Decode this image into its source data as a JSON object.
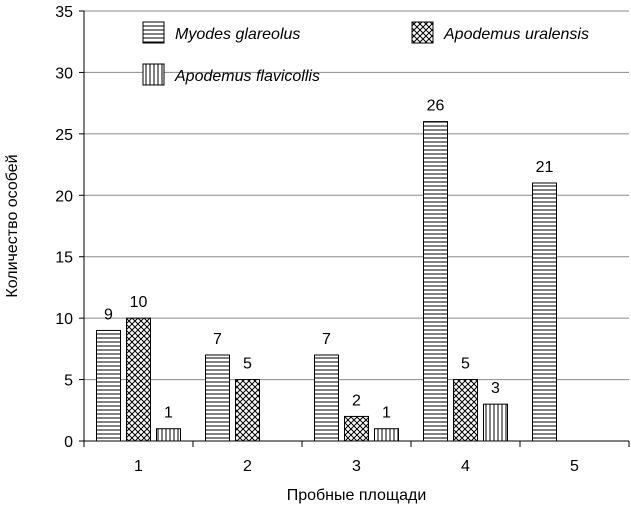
{
  "chart_data": {
    "type": "bar",
    "title": "",
    "xlabel": "Пробные площади",
    "ylabel": "Количество особей",
    "categories": [
      "1",
      "2",
      "3",
      "4",
      "5"
    ],
    "series": [
      {
        "name": "Myodes glareolus",
        "values": [
          9,
          7,
          7,
          26,
          21
        ],
        "pattern": "horizontal-lines"
      },
      {
        "name": "Apodemus uralensis",
        "values": [
          10,
          5,
          2,
          5,
          null
        ],
        "pattern": "crosshatch"
      },
      {
        "name": "Apodemus flavicollis",
        "values": [
          1,
          null,
          1,
          3,
          null
        ],
        "pattern": "vertical-lines"
      }
    ],
    "ylim": [
      0,
      35
    ],
    "yticks": [
      0,
      5,
      10,
      15,
      20,
      25,
      30,
      35
    ],
    "grid": true,
    "legend_position": "top"
  }
}
